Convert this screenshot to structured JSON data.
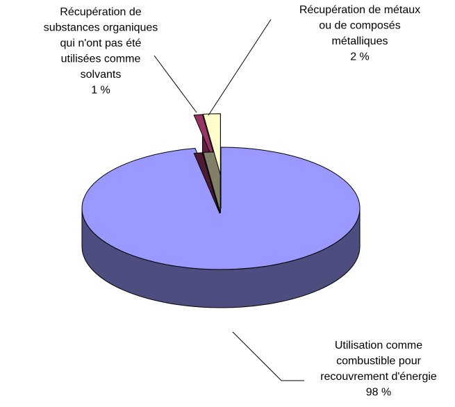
{
  "chart_data": {
    "type": "pie3d",
    "categories": [
      [
        "Utilisation comme",
        "combustible pour",
        "recouvrement d'énergie"
      ],
      [
        "Récupération de",
        "substances organiques",
        "qui n'ont pas été",
        "utilisées comme",
        "solvants"
      ],
      [
        "Récupération de métaux",
        "ou de composés",
        "métalliques"
      ]
    ],
    "values": [
      98,
      1,
      2
    ],
    "value_labels": [
      "98 %",
      "1 %",
      "2 %"
    ],
    "colors": [
      "#9999ff",
      "#993366",
      "#ffffcc"
    ]
  }
}
